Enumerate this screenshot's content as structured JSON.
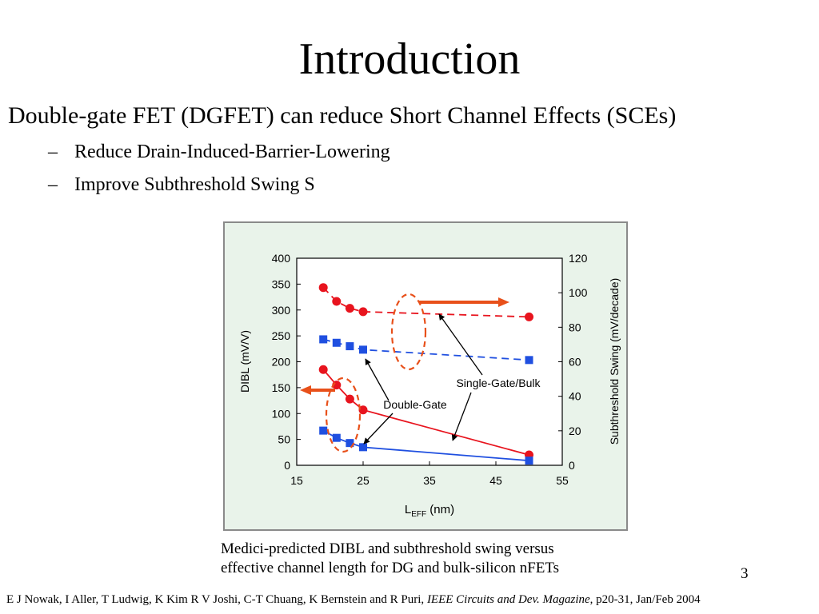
{
  "slide": {
    "title": "Introduction",
    "bullet_main": "Double-gate FET (DGFET) can reduce Short Channel Effects (SCEs)",
    "sub_bullets": [
      {
        "dash": "–",
        "text": "Reduce Drain-Induced-Barrier-Lowering"
      },
      {
        "dash": "–",
        "text": "Improve Subthreshold Swing S"
      }
    ],
    "caption_line1": "Medici-predicted DIBL and subthreshold swing versus",
    "caption_line2": "effective channel length for DG and bulk-silicon nFETs",
    "page_number": "3",
    "footer_authors": "E J Nowak, I Aller, T Ludwig, K Kim R V Joshi, C-T Chuang, K Bernstein and R Puri, ",
    "footer_journal": "IEEE Circuits and Dev.  Magazine",
    "footer_tail": ", p20-31, Jan/Feb 2004"
  },
  "chart_data": {
    "type": "line",
    "xlabel_main": "L",
    "xlabel_sub": "EFF",
    "xlabel_unit": " (nm)",
    "ylabel_left": "DIBL (mV/V)",
    "ylabel_right": "Subthreshold Swing (mV/decade)",
    "xlim": [
      15,
      55
    ],
    "ylim_left": [
      0,
      400
    ],
    "ylim_right": [
      0,
      120
    ],
    "x_ticks": [
      15,
      25,
      35,
      45,
      55
    ],
    "y_left_ticks": [
      0,
      50,
      100,
      150,
      200,
      250,
      300,
      350,
      400
    ],
    "y_right_ticks": [
      0,
      20,
      40,
      60,
      80,
      100,
      120
    ],
    "annotations": {
      "single_gate": "Single-Gate/Bulk",
      "double_gate": "Double-Gate"
    },
    "series": [
      {
        "axis": "right",
        "marker": "circle",
        "color": "#e8141e",
        "dash": true,
        "x": [
          19,
          21,
          23,
          25,
          50
        ],
        "y": [
          103,
          95,
          91,
          89,
          86
        ]
      },
      {
        "axis": "right",
        "marker": "square",
        "color": "#1f4fe0",
        "dash": true,
        "x": [
          19,
          21,
          23,
          25,
          50
        ],
        "y": [
          73,
          71,
          69,
          67,
          61
        ]
      },
      {
        "axis": "left",
        "marker": "circle",
        "color": "#e8141e",
        "dash": false,
        "x": [
          19,
          21,
          23,
          25,
          50
        ],
        "y": [
          185,
          155,
          128,
          107,
          20
        ]
      },
      {
        "axis": "left",
        "marker": "square",
        "color": "#1f4fe0",
        "dash": false,
        "x": [
          19,
          21,
          23,
          25,
          50
        ],
        "y": [
          67,
          53,
          43,
          35,
          9
        ]
      }
    ],
    "colors": {
      "accent_arrow": "#e8501a",
      "red": "#e8141e",
      "blue": "#1f4fe0"
    }
  }
}
